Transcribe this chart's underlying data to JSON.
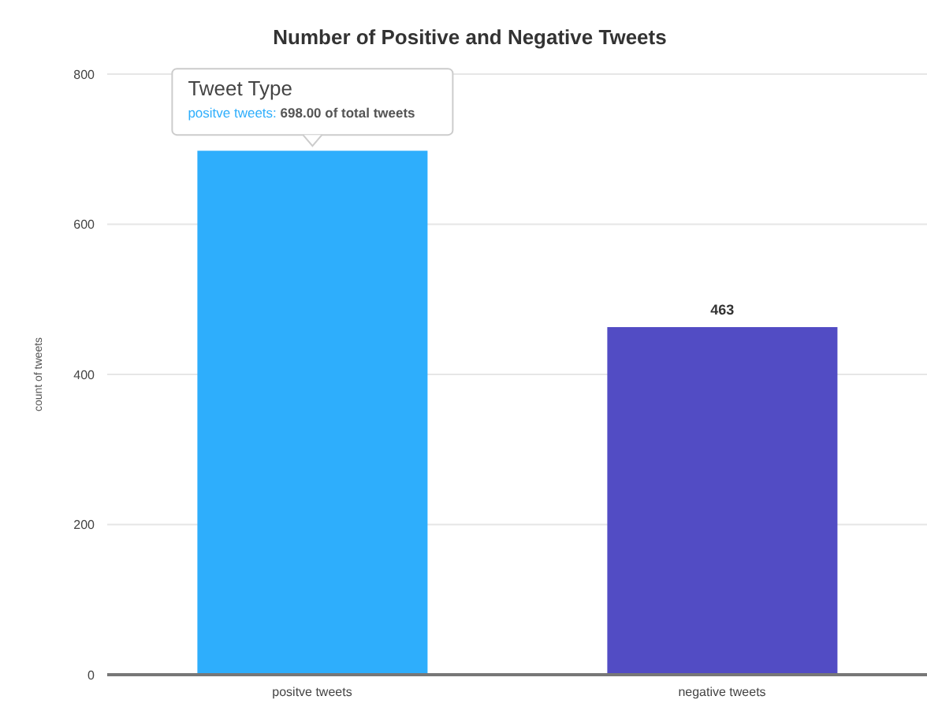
{
  "chart_data": {
    "type": "bar",
    "title": "Number of Positive and Negative Tweets",
    "ylabel": "count of tweets",
    "categories": [
      "positve tweets",
      "negative tweets"
    ],
    "values": [
      698,
      463
    ],
    "colors": [
      "#2eaefc",
      "#524cc4"
    ],
    "value_labels": [
      null,
      "463"
    ],
    "annotations": [
      {
        "text": "Tweet Type",
        "x": "positve tweets",
        "y": 698
      },
      {
        "text": "positve tweets: 698.00 of total tweets",
        "x": "positve tweets",
        "y": 698
      }
    ],
    "ylim": [
      0,
      800
    ],
    "yticks": [
      0,
      200,
      400,
      600,
      800
    ],
    "grid": "y"
  }
}
